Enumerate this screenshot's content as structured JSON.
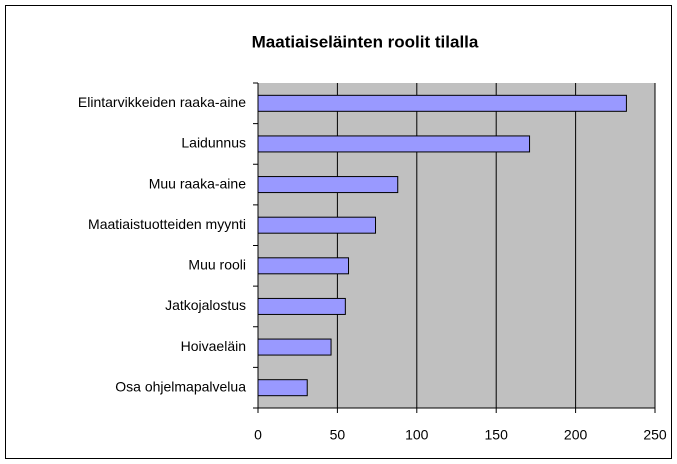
{
  "chart_data": {
    "type": "bar",
    "orientation": "horizontal",
    "title": "Maatiaiseläinten roolit tilalla",
    "categories": [
      "Elintarvikkeiden raaka-aine",
      "Laidunnus",
      "Muu raaka-aine",
      "Maatiaistuotteiden myynti",
      "Muu rooli",
      "Jatkojalostus",
      "Hoivaeläin",
      "Osa ohjelmapalvelua"
    ],
    "values": [
      232,
      171,
      88,
      74,
      57,
      55,
      46,
      31
    ],
    "color": "#9999ff",
    "xlim": [
      0,
      250
    ],
    "xticks": [
      0,
      50,
      100,
      150,
      200,
      250
    ],
    "grid": true
  }
}
